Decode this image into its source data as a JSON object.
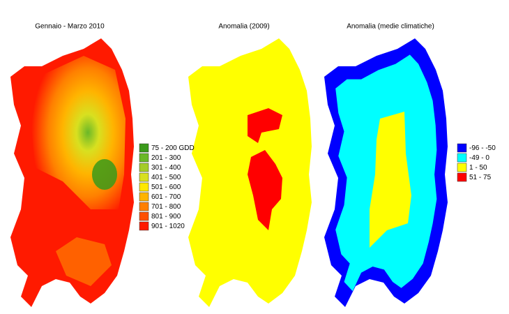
{
  "maps": [
    {
      "title": "Gennaio - Marzo 2010",
      "legend": [
        {
          "label": "75 - 200 GDD",
          "color": "#3a9a1a"
        },
        {
          "label": "201 - 300",
          "color": "#6ab828"
        },
        {
          "label": "301 - 400",
          "color": "#a4cc28"
        },
        {
          "label": "401 - 500",
          "color": "#d8e020"
        },
        {
          "label": "501 - 600",
          "color": "#ffe800"
        },
        {
          "label": "601 - 700",
          "color": "#ffb400"
        },
        {
          "label": "701 - 800",
          "color": "#ff8000"
        },
        {
          "label": "801 - 900",
          "color": "#ff5000"
        },
        {
          "label": "901 - 1020",
          "color": "#ff1a00"
        }
      ]
    },
    {
      "title": "Anomalia (2009)"
    },
    {
      "title": "Anomalia (medie climatiche)",
      "legend": [
        {
          "label": "-96 - -50",
          "color": "#0000ff"
        },
        {
          "label": "-49 - 0",
          "color": "#00ffff"
        },
        {
          "label": "1 - 50",
          "color": "#ffff00"
        },
        {
          "label": "51 - 75",
          "color": "#ff0000"
        }
      ]
    }
  ]
}
